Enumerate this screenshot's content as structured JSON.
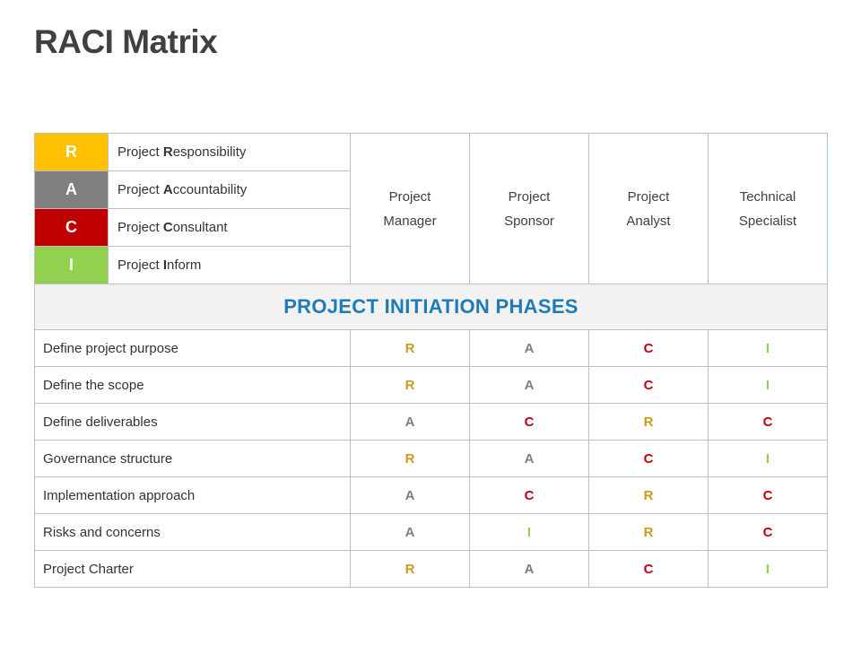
{
  "title": "RACI Matrix",
  "legend": [
    {
      "letter": "R",
      "pre": "Project ",
      "highlight": "R",
      "post": "esponsibility",
      "color": "#ffc000"
    },
    {
      "letter": "A",
      "pre": "Project ",
      "highlight": "A",
      "post": "ccountability",
      "color": "#7f7f7f"
    },
    {
      "letter": "C",
      "pre": "Project ",
      "highlight": "C",
      "post": "onsultant",
      "color": "#c00000"
    },
    {
      "letter": "I",
      "pre": "Project ",
      "highlight": "I",
      "post": "nform",
      "color": "#92d050"
    }
  ],
  "roles": [
    {
      "line1": "Project",
      "line2": "Manager"
    },
    {
      "line1": "Project",
      "line2": "Sponsor"
    },
    {
      "line1": "Project",
      "line2": "Analyst"
    },
    {
      "line1": "Technical",
      "line2": "Specialist"
    }
  ],
  "phase_title": "PROJECT INITIATION PHASES",
  "mark_colors": {
    "R": "#c89b1f",
    "A": "#7f7f7f",
    "C": "#c0000f",
    "I": "#92d050"
  },
  "tasks": [
    {
      "name": "Define project purpose",
      "marks": [
        "R",
        "A",
        "C",
        "I"
      ]
    },
    {
      "name": "Define the scope",
      "marks": [
        "R",
        "A",
        "C",
        "I"
      ]
    },
    {
      "name": "Define deliverables",
      "marks": [
        "A",
        "C",
        "R",
        "C"
      ]
    },
    {
      "name": "Governance structure",
      "marks": [
        "R",
        "A",
        "C",
        "I"
      ]
    },
    {
      "name": "Implementation approach",
      "marks": [
        "A",
        "C",
        "R",
        "C"
      ]
    },
    {
      "name": "Risks and concerns",
      "marks": [
        "A",
        "I",
        "R",
        "C"
      ]
    },
    {
      "name": "Project Charter",
      "marks": [
        "R",
        "A",
        "C",
        "I"
      ]
    }
  ]
}
